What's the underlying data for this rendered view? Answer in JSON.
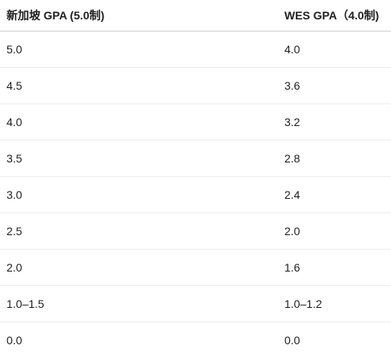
{
  "table": {
    "headers": [
      "新加坡 GPA (5.0制)",
      "WES GPA（4.0制)"
    ],
    "rows": [
      [
        "5.0",
        "4.0"
      ],
      [
        "4.5",
        "3.6"
      ],
      [
        "4.0",
        "3.2"
      ],
      [
        "3.5",
        "2.8"
      ],
      [
        "3.0",
        "2.4"
      ],
      [
        "2.5",
        "2.0"
      ],
      [
        "2.0",
        "1.6"
      ],
      [
        "1.0–1.5",
        "1.0–1.2"
      ],
      [
        "0.0",
        "0.0"
      ]
    ]
  }
}
